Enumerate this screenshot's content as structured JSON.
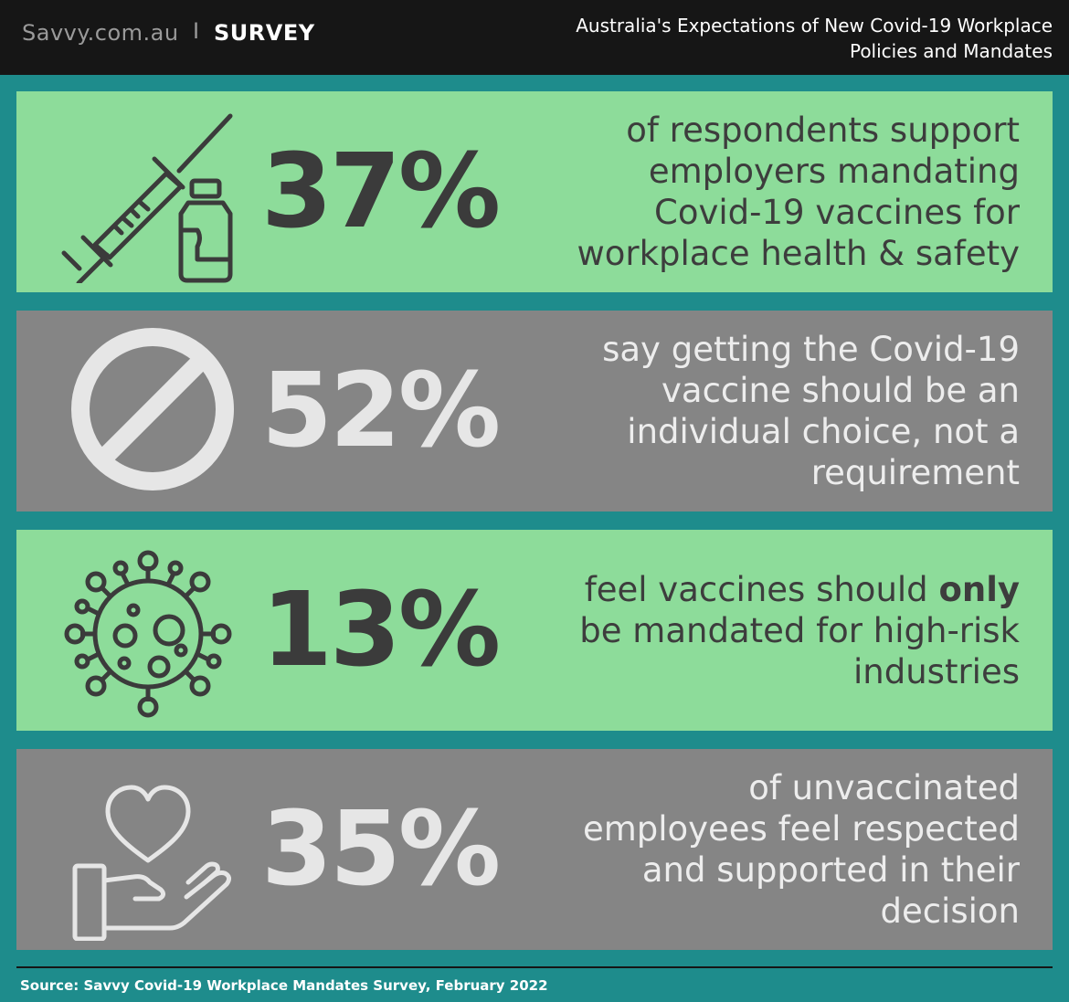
{
  "header": {
    "brand": "Savvy.com.au",
    "separator": "I",
    "section": "SURVEY",
    "title_line1": "Australia's Expectations of New Covid-19 Workplace",
    "title_line2": "Policies and Mandates"
  },
  "cards": [
    {
      "stat": "37%",
      "icon": "syringe-vial-icon",
      "text_lines": [
        "of respondents support",
        "employers mandating",
        "Covid-19 vaccines for",
        "workplace health & safety"
      ]
    },
    {
      "stat": "52%",
      "icon": "prohibited-icon",
      "text_lines": [
        "say getting the Covid-19",
        "vaccine should be an",
        "individual choice, not a",
        "requirement"
      ]
    },
    {
      "stat": "13%",
      "icon": "virus-icon",
      "text_pre": "feel vaccines should ",
      "text_bold": "only",
      "text_lines": [
        "be mandated for high-risk",
        "industries"
      ]
    },
    {
      "stat": "35%",
      "icon": "heart-hand-icon",
      "text_lines": [
        "of unvaccinated",
        "employees feel respected",
        "and supported in their",
        "decision"
      ]
    }
  ],
  "colors": {
    "background": "#1e8c8c",
    "header_bg": "#161616",
    "card_green": "#8ddc9a",
    "card_grey": "#858585"
  },
  "footer": {
    "source": "Source: Savvy Covid-19 Workplace Mandates Survey, February 2022"
  }
}
